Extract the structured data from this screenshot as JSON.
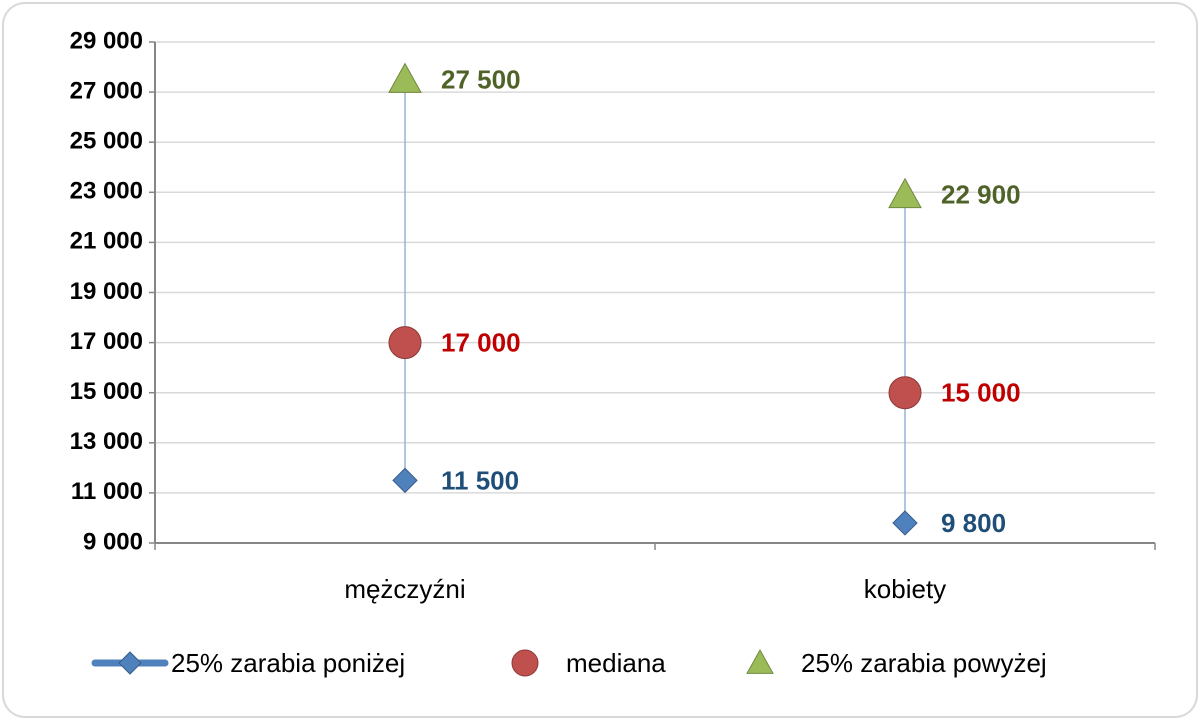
{
  "chart_data": {
    "type": "scatter",
    "categories": [
      "mężczyźni",
      "kobiety"
    ],
    "series": [
      {
        "name": "25% zarabia poniżej",
        "color": "#4f81bd",
        "marker": "diamond",
        "label_color": "#1f4e79",
        "values": [
          11500,
          9800
        ],
        "value_labels": [
          "11 500",
          "9 800"
        ]
      },
      {
        "name": "mediana",
        "color": "#c0504d",
        "marker": "circle",
        "label_color": "#c00000",
        "values": [
          17000,
          15000
        ],
        "value_labels": [
          "17 000",
          "15 000"
        ]
      },
      {
        "name": "25% zarabia powyżej",
        "color": "#9bbb59",
        "marker": "triangle",
        "label_color": "#4f6228",
        "values": [
          27500,
          22900
        ],
        "value_labels": [
          "27 500",
          "22 900"
        ]
      }
    ],
    "ylim": [
      9000,
      29000
    ],
    "yticks": [
      {
        "value": 9000,
        "label": "9 000"
      },
      {
        "value": 11000,
        "label": "11 000"
      },
      {
        "value": 13000,
        "label": "13 000"
      },
      {
        "value": 15000,
        "label": "15 000"
      },
      {
        "value": 17000,
        "label": "17 000"
      },
      {
        "value": 19000,
        "label": "19 000"
      },
      {
        "value": 21000,
        "label": "21 000"
      },
      {
        "value": 23000,
        "label": "23 000"
      },
      {
        "value": 25000,
        "label": "25 000"
      },
      {
        "value": 27000,
        "label": "27 000"
      },
      {
        "value": 29000,
        "label": "29 000"
      }
    ],
    "grid": true,
    "legend": "bottom"
  }
}
